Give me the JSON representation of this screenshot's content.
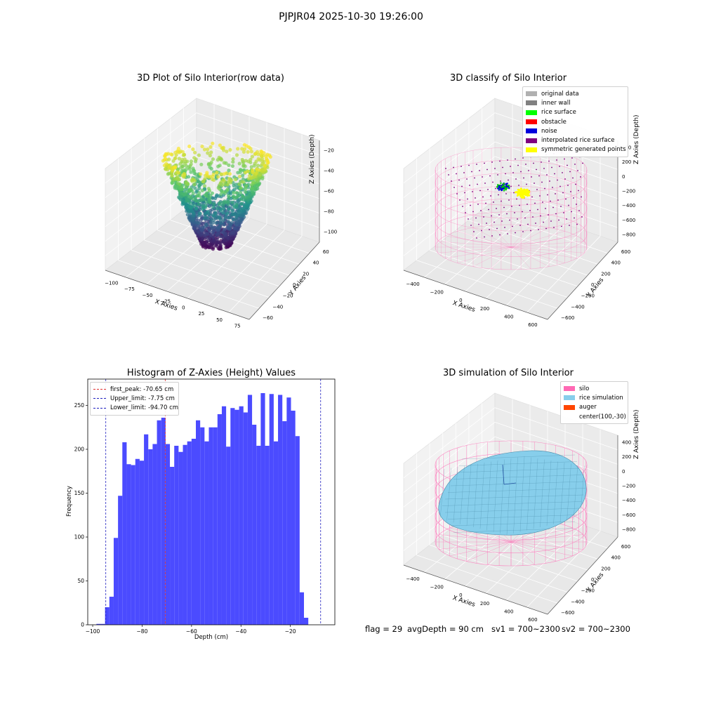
{
  "suptitle": "PJPJR04 2025-10-30 19:26:00",
  "footer": {
    "flag": "flag = 29",
    "avg_depth": "avgDepth = 90 cm",
    "sv1": "sv1 = 700~2300",
    "sv2": "sv2 = 700~2300"
  },
  "colors": {
    "hist_bar": "#4b4bff",
    "first_peak": "#e03030",
    "limits": "#2020c0",
    "silo": "#ff69b4",
    "rice_sim": "#87ceeb",
    "auger": "#ff4500"
  },
  "chart_data": [
    {
      "type": "scatter",
      "title": "3D Plot of Silo Interior(row data)",
      "xlabel": "X Axies",
      "ylabel": "Y Axies",
      "zlabel": "Z Axies (Depth)",
      "x_ticks": [
        "−100",
        "−75",
        "−50",
        "−25",
        "0",
        "25",
        "50",
        "75"
      ],
      "y_ticks": [
        "−60",
        "−40",
        "−20",
        "0",
        "20",
        "40",
        "60"
      ],
      "z_ticks": [
        "−20",
        "−40",
        "−60",
        "−80",
        "−100"
      ],
      "xlim": [
        -100,
        85
      ],
      "ylim": [
        -65,
        65
      ],
      "zlim": [
        -110,
        -5
      ],
      "colormap": "viridis",
      "description_points": "cone-shaped point cloud, rim near z=-10, bottom near z=-100"
    },
    {
      "type": "scatter",
      "title": "3D classify of Silo Interior",
      "xlabel": "X Axies",
      "ylabel": "Y Axies",
      "zlabel": "Z Axies (Depth)",
      "x_ticks": [
        "−400",
        "−200",
        "0",
        "200",
        "400",
        "600"
      ],
      "y_ticks": [
        "−600",
        "−400",
        "−200",
        "0",
        "200",
        "400",
        "600"
      ],
      "z_ticks": [
        "400",
        "200",
        "0",
        "−200",
        "−400",
        "−600",
        "−800"
      ],
      "legend": [
        {
          "label": "original data",
          "color": "#b0b0b0"
        },
        {
          "label": "inner wall",
          "color": "#808080"
        },
        {
          "label": "rice surface",
          "color": "#00ff00"
        },
        {
          "label": "obstacle",
          "color": "#ff0000"
        },
        {
          "label": "noise",
          "color": "#0000dd"
        },
        {
          "label": "interpolated rice surface",
          "color": "#800080"
        },
        {
          "label": "symmetric generated points",
          "color": "#ffff00"
        }
      ]
    },
    {
      "type": "bar",
      "title": "Histogram of Z-Axies (Height) Values",
      "xlabel": "Depth (cm)",
      "ylabel": "Frequency",
      "xlim": [
        -102,
        -2
      ],
      "ylim": [
        0,
        280
      ],
      "x_ticks": [
        -100,
        -80,
        -60,
        -40,
        -20
      ],
      "y_ticks": [
        0,
        50,
        100,
        150,
        200,
        250
      ],
      "bin_start": -98.5,
      "bin_width": 1.75,
      "values": [
        1,
        1,
        20,
        32,
        99,
        147,
        208,
        183,
        182,
        189,
        187,
        217,
        200,
        206,
        233,
        236,
        206,
        180,
        204,
        197,
        205,
        209,
        212,
        233,
        225,
        209,
        225,
        225,
        240,
        249,
        203,
        247,
        245,
        249,
        242,
        262,
        228,
        204,
        264,
        204,
        263,
        209,
        262,
        232,
        259,
        244,
        215,
        37,
        8
      ],
      "lines": [
        {
          "label": "first_peak: -70.65 cm",
          "x": -70.65,
          "color": "#e03030"
        },
        {
          "label": "Upper_limit: -7.75 cm",
          "x": -7.75,
          "color": "#2020c0"
        },
        {
          "label": "Lower_limit: -94.70 cm",
          "x": -94.7,
          "color": "#2020c0"
        }
      ]
    },
    {
      "type": "area",
      "title": "3D simulation of Silo Interior",
      "xlabel": "X Axies",
      "ylabel": "Y Axies",
      "zlabel": "Z Axies (Depth)",
      "x_ticks": [
        "−400",
        "−200",
        "0",
        "200",
        "400",
        "600"
      ],
      "y_ticks": [
        "−600",
        "−400",
        "−200",
        "0",
        "200",
        "400",
        "600"
      ],
      "z_ticks": [
        "400",
        "200",
        "0",
        "−200",
        "−400",
        "−600",
        "−800"
      ],
      "legend": [
        {
          "label": "silo",
          "color": "#ff69b4"
        },
        {
          "label": "rice simulation",
          "color": "#87ceeb"
        },
        {
          "label": "auger",
          "color": "#ff4500"
        },
        {
          "label": "center(100,-30)",
          "color": ""
        }
      ]
    }
  ]
}
